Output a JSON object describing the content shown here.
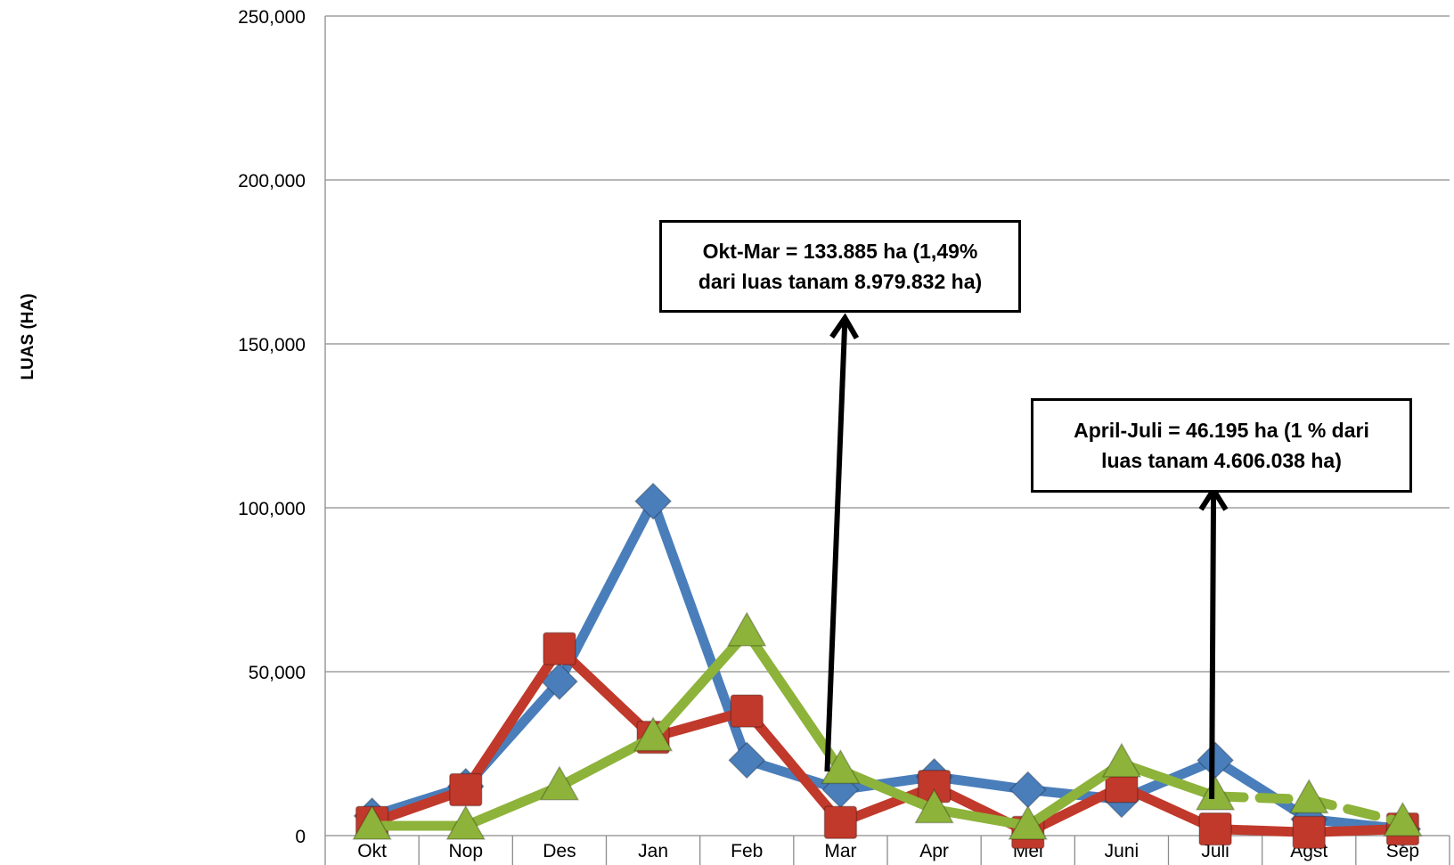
{
  "chart_data": {
    "type": "line",
    "title": "",
    "xlabel": "",
    "ylabel": "LUAS (HA)",
    "categories": [
      "Okt",
      "Nop",
      "Des",
      "Jan",
      "Feb",
      "Mar",
      "Apr",
      "Mei",
      "Juni",
      "Juli",
      "Agst",
      "Sep"
    ],
    "yticks": [
      "0",
      "50,000",
      "100,000",
      "150,000",
      "200,000",
      "250,000"
    ],
    "ylim": [
      0,
      250000
    ],
    "grid": true,
    "series": [
      {
        "color": "#4a7ebb",
        "marker": "diamond",
        "values": [
          6000,
          15000,
          47000,
          102000,
          23000,
          14000,
          18000,
          14000,
          11000,
          23000,
          5000,
          2000
        ]
      },
      {
        "color": "#c0392b",
        "marker": "square",
        "values": [
          4000,
          14000,
          57000,
          30000,
          38000,
          4000,
          15000,
          1000,
          15000,
          2000,
          1000,
          2000
        ]
      },
      {
        "color": "#8db33a",
        "marker": "triangle",
        "values": [
          3000,
          3000,
          15000,
          30000,
          62000,
          20000,
          8000,
          3000,
          22000,
          12000,
          11000,
          4000
        ],
        "dashed_from_index": 9
      }
    ],
    "annotations": [
      {
        "text": "Okt-Mar  = 133.885 ha (1,49%\ndari luas tanam 8.979.832 ha)",
        "points_to": "Mar"
      },
      {
        "text": "April-Juli = 46.195 ha (1 % dari\nluas tanam 4.606.038 ha)",
        "points_to": "Juli"
      }
    ]
  }
}
